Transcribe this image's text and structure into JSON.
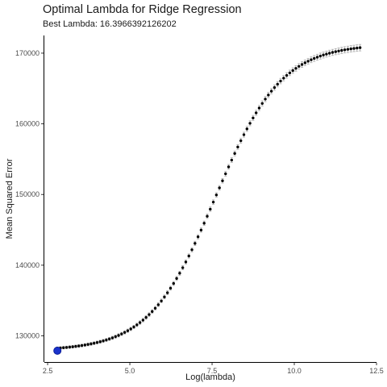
{
  "chart_data": {
    "type": "scatter",
    "title": "Optimal Lambda for Ridge Regression",
    "subtitle": "Best Lambda:  16.3966392126202",
    "xlabel": "Log(lambda)",
    "ylabel": "Mean Squared Error",
    "xlim": [
      2.4,
      12.5
    ],
    "ylim": [
      126300,
      172500
    ],
    "x_ticks": [
      2.5,
      5.0,
      7.5,
      10.0,
      12.5
    ],
    "x_tick_labels": [
      "2.5",
      "5.0",
      "7.5",
      "10.0",
      "12.5"
    ],
    "y_ticks": [
      130000,
      140000,
      150000,
      160000,
      170000
    ],
    "y_tick_labels": [
      "130000",
      "140000",
      "150000",
      "160000",
      "170000"
    ],
    "grid": false,
    "curve": {
      "x_start": 2.797,
      "x_end": 12.0,
      "n_points": 100,
      "y_min": 127900,
      "y_max": 171300,
      "midpoint": 7.6,
      "scale": 1.0
    },
    "best_point": {
      "x": 2.797,
      "y": 127900
    },
    "colors": {
      "points": "#000000",
      "error_bars": "#aaaaaa",
      "best": "#1a33cc"
    }
  }
}
